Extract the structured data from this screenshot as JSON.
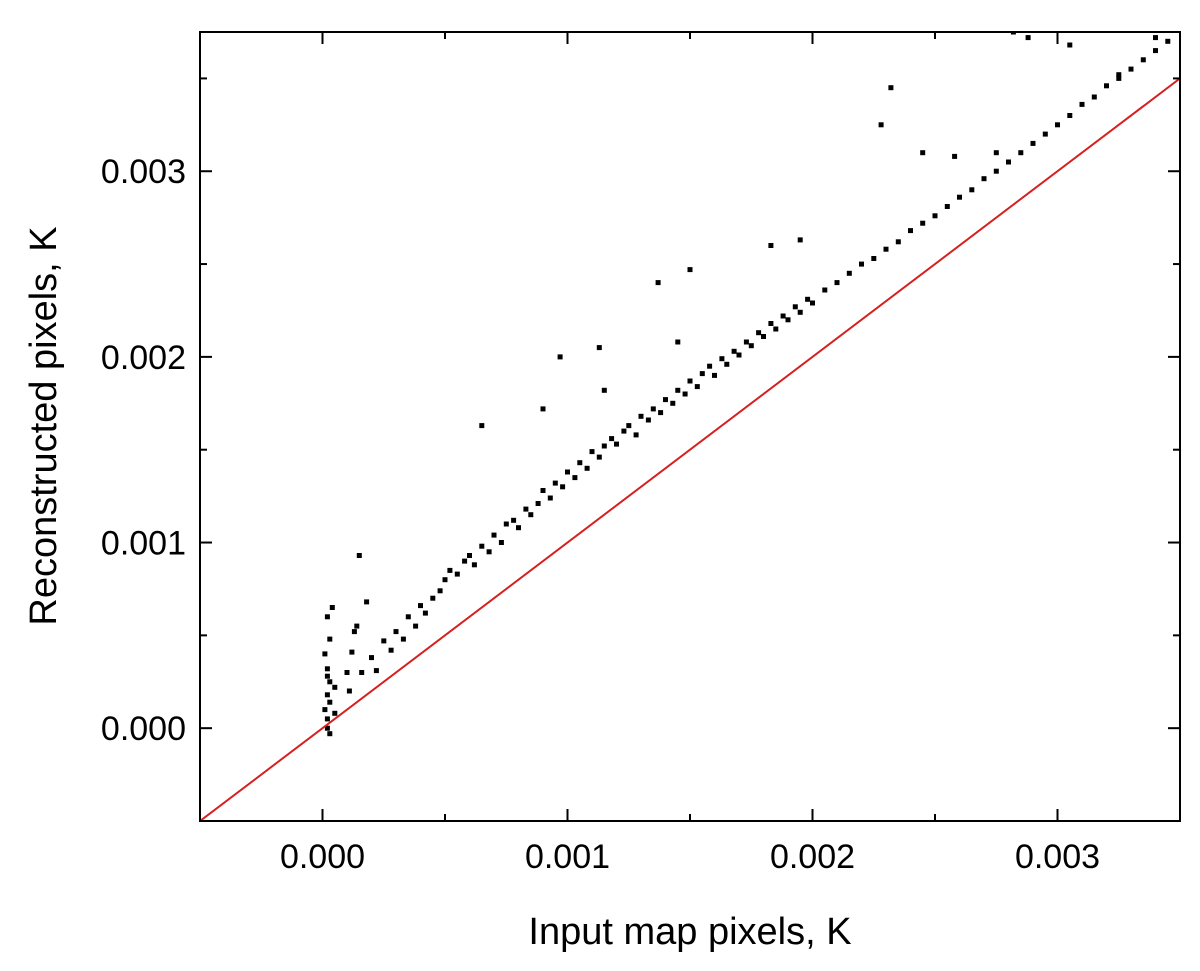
{
  "chart_data": {
    "type": "scatter",
    "title": "",
    "xlabel": "Input map pixels, K",
    "ylabel": "Reconstructed pixels, K",
    "xlim": [
      -0.0005,
      0.0035
    ],
    "ylim": [
      -0.0005,
      0.00375
    ],
    "x_ticks": [
      {
        "value": 0.0,
        "label": "0.000"
      },
      {
        "value": 0.001,
        "label": "0.001"
      },
      {
        "value": 0.002,
        "label": "0.002"
      },
      {
        "value": 0.003,
        "label": "0.003"
      }
    ],
    "y_ticks": [
      {
        "value": 0.0,
        "label": "0.000"
      },
      {
        "value": 0.001,
        "label": "0.001"
      },
      {
        "value": 0.002,
        "label": "0.002"
      },
      {
        "value": 0.003,
        "label": "0.003"
      }
    ],
    "minor_tick_step": 0.0005,
    "grid": false,
    "legend": "none",
    "reference_line": {
      "label": "y = x",
      "slope": 1,
      "intercept": 0,
      "color": "#d62020"
    },
    "marker_color": "#000000",
    "series": [
      {
        "color": "#000000",
        "points": [
          [
            2e-05,
            0.0
          ],
          [
            2e-05,
            5e-05
          ],
          [
            3e-05,
            -3e-05
          ],
          [
            1e-05,
            0.0001
          ],
          [
            2e-05,
            0.00018
          ],
          [
            3e-05,
            0.00025
          ],
          [
            2e-05,
            0.00032
          ],
          [
            1e-05,
            0.0004
          ],
          [
            3e-05,
            0.00048
          ],
          [
            2e-05,
            0.0006
          ],
          [
            4e-05,
            0.00065
          ],
          [
            2e-05,
            0.00028
          ],
          [
            3e-05,
            0.00014
          ],
          [
            5e-05,
            0.00022
          ],
          [
            5e-05,
            8e-05
          ],
          [
            0.0001,
            0.0003
          ],
          [
            0.00012,
            0.00041
          ],
          [
            0.00014,
            0.00055
          ],
          [
            0.00018,
            0.00068
          ],
          [
            0.00015,
            0.00093
          ],
          [
            0.00011,
            0.0002
          ],
          [
            0.00013,
            0.00052
          ],
          [
            0.00016,
            0.0003
          ],
          [
            0.0002,
            0.00038
          ],
          [
            0.00022,
            0.00031
          ],
          [
            0.00025,
            0.00047
          ],
          [
            0.00028,
            0.00042
          ],
          [
            0.0003,
            0.00052
          ],
          [
            0.00033,
            0.00048
          ],
          [
            0.00035,
            0.0006
          ],
          [
            0.00038,
            0.00055
          ],
          [
            0.0004,
            0.00066
          ],
          [
            0.00042,
            0.00062
          ],
          [
            0.00045,
            0.0007
          ],
          [
            0.00048,
            0.00074
          ],
          [
            0.0005,
            0.0008
          ],
          [
            0.00052,
            0.00085
          ],
          [
            0.00055,
            0.00083
          ],
          [
            0.00058,
            0.0009
          ],
          [
            0.0006,
            0.00093
          ],
          [
            0.00062,
            0.00088
          ],
          [
            0.00065,
            0.00098
          ],
          [
            0.00068,
            0.00095
          ],
          [
            0.0007,
            0.00104
          ],
          [
            0.00073,
            0.001
          ],
          [
            0.00075,
            0.0011
          ],
          [
            0.00078,
            0.00112
          ],
          [
            0.0008,
            0.00108
          ],
          [
            0.00083,
            0.00118
          ],
          [
            0.00085,
            0.00115
          ],
          [
            0.00088,
            0.00121
          ],
          [
            0.0009,
            0.00128
          ],
          [
            0.00093,
            0.00124
          ],
          [
            0.00095,
            0.00132
          ],
          [
            0.00098,
            0.0013
          ],
          [
            0.001,
            0.00138
          ],
          [
            0.00103,
            0.00135
          ],
          [
            0.00105,
            0.00143
          ],
          [
            0.00108,
            0.0014
          ],
          [
            0.0011,
            0.00149
          ],
          [
            0.00113,
            0.00146
          ],
          [
            0.00115,
            0.00152
          ],
          [
            0.00118,
            0.00156
          ],
          [
            0.0012,
            0.00153
          ],
          [
            0.00123,
            0.0016
          ],
          [
            0.00125,
            0.00163
          ],
          [
            0.00128,
            0.00158
          ],
          [
            0.0013,
            0.00168
          ],
          [
            0.00133,
            0.00166
          ],
          [
            0.00135,
            0.00172
          ],
          [
            0.00138,
            0.0017
          ],
          [
            0.0014,
            0.00177
          ],
          [
            0.00143,
            0.00175
          ],
          [
            0.00145,
            0.00182
          ],
          [
            0.00148,
            0.0018
          ],
          [
            0.0015,
            0.00187
          ],
          [
            0.00153,
            0.00184
          ],
          [
            0.00155,
            0.00191
          ],
          [
            0.00158,
            0.00195
          ],
          [
            0.0016,
            0.0019
          ],
          [
            0.00163,
            0.00199
          ],
          [
            0.00165,
            0.00196
          ],
          [
            0.00168,
            0.00203
          ],
          [
            0.0017,
            0.00201
          ],
          [
            0.00173,
            0.00208
          ],
          [
            0.00175,
            0.00206
          ],
          [
            0.00178,
            0.00213
          ],
          [
            0.0018,
            0.00211
          ],
          [
            0.00183,
            0.00218
          ],
          [
            0.00185,
            0.00215
          ],
          [
            0.00188,
            0.00222
          ],
          [
            0.0019,
            0.0022
          ],
          [
            0.00193,
            0.00227
          ],
          [
            0.00195,
            0.00224
          ],
          [
            0.00198,
            0.00231
          ],
          [
            0.002,
            0.00229
          ],
          [
            0.00205,
            0.00236
          ],
          [
            0.0021,
            0.0024
          ],
          [
            0.00215,
            0.00245
          ],
          [
            0.0022,
            0.0025
          ],
          [
            0.00225,
            0.00253
          ],
          [
            0.0023,
            0.00258
          ],
          [
            0.00235,
            0.00262
          ],
          [
            0.0024,
            0.00268
          ],
          [
            0.00245,
            0.00272
          ],
          [
            0.0025,
            0.00276
          ],
          [
            0.00255,
            0.00281
          ],
          [
            0.0026,
            0.00286
          ],
          [
            0.00265,
            0.0029
          ],
          [
            0.0027,
            0.00296
          ],
          [
            0.00275,
            0.003
          ],
          [
            0.0028,
            0.00305
          ],
          [
            0.00285,
            0.0031
          ],
          [
            0.0029,
            0.00315
          ],
          [
            0.00295,
            0.0032
          ],
          [
            0.003,
            0.00325
          ],
          [
            0.00305,
            0.0033
          ],
          [
            0.0031,
            0.00336
          ],
          [
            0.00315,
            0.0034
          ],
          [
            0.0032,
            0.00346
          ],
          [
            0.00325,
            0.0035
          ],
          [
            0.0033,
            0.00355
          ],
          [
            0.00335,
            0.0036
          ],
          [
            0.0034,
            0.00365
          ],
          [
            0.00345,
            0.0037
          ],
          [
            0.00097,
            0.002
          ],
          [
            0.00065,
            0.00163
          ],
          [
            0.0009,
            0.00172
          ],
          [
            0.00115,
            0.00182
          ],
          [
            0.00113,
            0.00205
          ],
          [
            0.00145,
            0.00208
          ],
          [
            0.00137,
            0.0024
          ],
          [
            0.0015,
            0.00247
          ],
          [
            0.00183,
            0.0026
          ],
          [
            0.00195,
            0.00263
          ],
          [
            0.00245,
            0.0031
          ],
          [
            0.00232,
            0.00345
          ],
          [
            0.00228,
            0.00325
          ],
          [
            0.00258,
            0.00308
          ],
          [
            0.00275,
            0.0031
          ],
          [
            0.00305,
            0.00368
          ],
          [
            0.00288,
            0.00372
          ],
          [
            0.00325,
            0.00352
          ],
          [
            0.00282,
            0.00375
          ],
          [
            0.0034,
            0.00372
          ]
        ]
      }
    ]
  }
}
